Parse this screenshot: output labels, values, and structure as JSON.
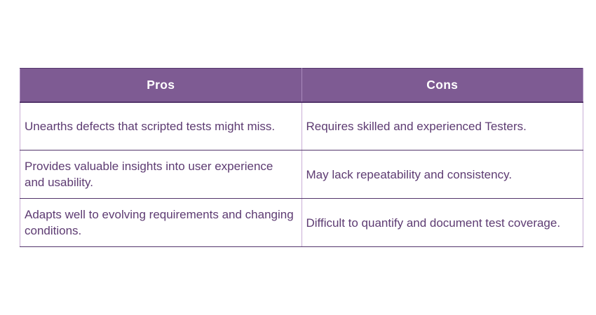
{
  "table": {
    "title": "pros-cons-comparison",
    "headers": {
      "pros": "Pros",
      "cons": "Cons"
    },
    "rows": [
      {
        "pro": "Unearths defects that scripted tests might miss.",
        "con": "Requires skilled and experienced Testers."
      },
      {
        "pro": "Provides valuable insights into user experience and usability.",
        "con": "May lack repeatability and consistency."
      },
      {
        "pro": "Adapts well to evolving requirements and changing conditions.",
        "con": "Difficult to quantify and document test coverage."
      }
    ],
    "colors": {
      "header_bg": "#7E5B93",
      "header_text": "#FFFFFF",
      "body_text": "#5D3B72",
      "border_dark": "#53356B",
      "border_light": "#C9AED6"
    }
  }
}
